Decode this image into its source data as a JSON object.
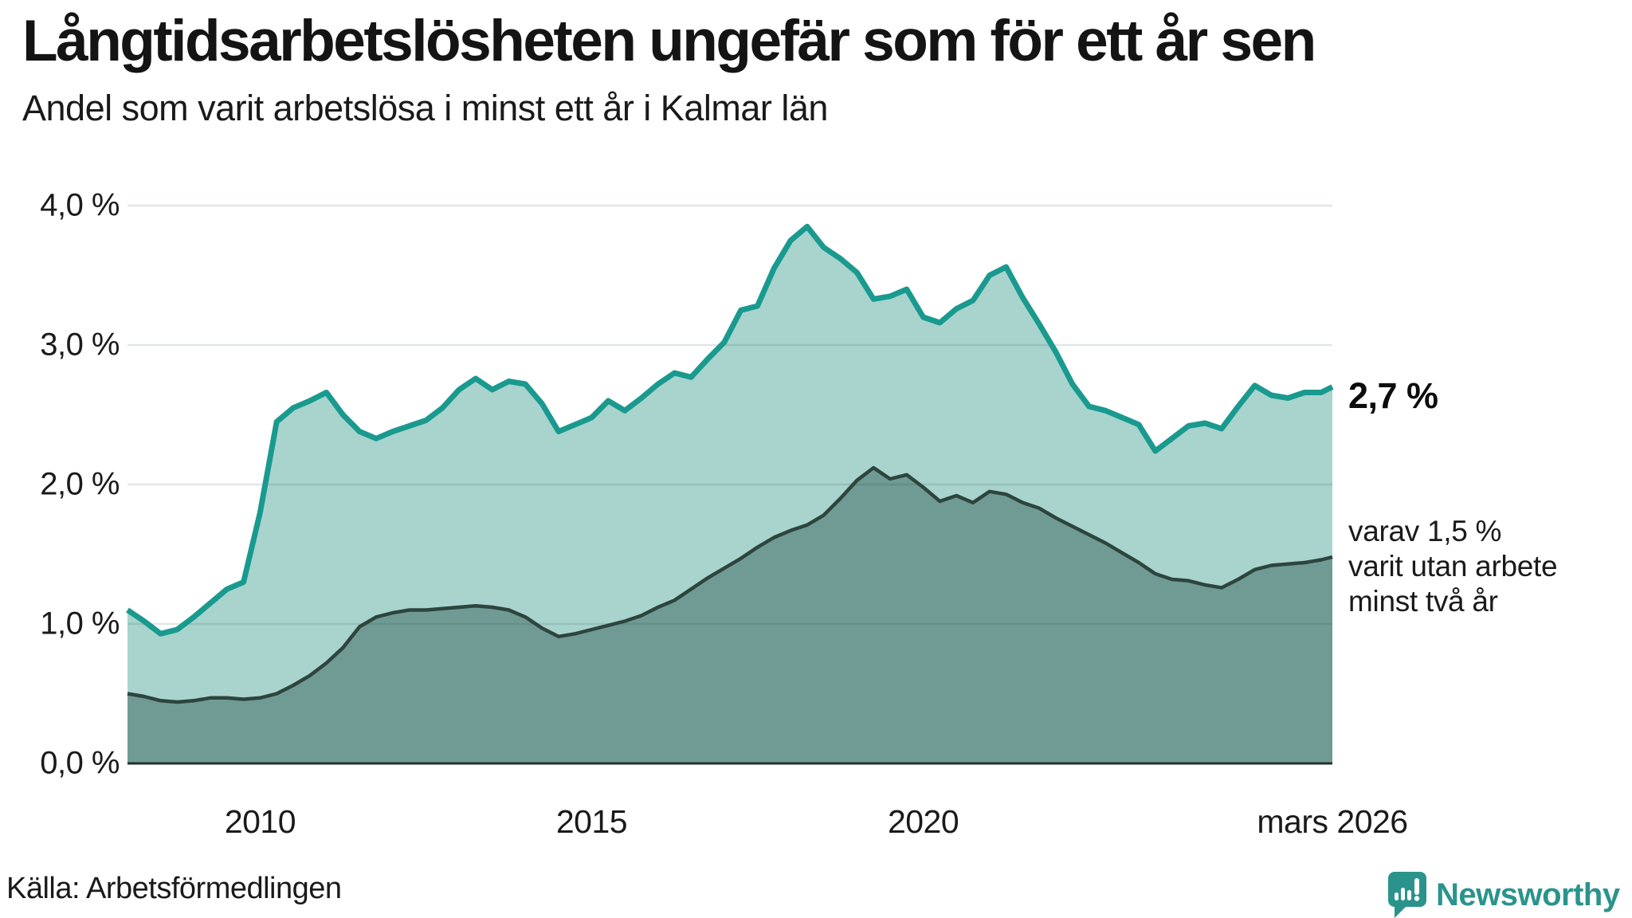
{
  "header": {
    "title": "Långtidsarbetslösheten ungefär som för ett år sen",
    "subtitle": "Andel som varit arbetslösa i minst ett år i Kalmar län"
  },
  "chart_data": {
    "type": "area",
    "title": "Långtidsarbetslösheten ungefär som för ett år sen",
    "subtitle": "Andel som varit arbetslösa i minst ett år i Kalmar län",
    "xlabel": "",
    "ylabel": "",
    "ylim": [
      0,
      4
    ],
    "xlim": [
      2008.0,
      2026.17
    ],
    "grid": true,
    "y_ticks": [
      {
        "label": "4,0 %",
        "value": 4
      },
      {
        "label": "3,0 %",
        "value": 3
      },
      {
        "label": "2,0 %",
        "value": 2
      },
      {
        "label": "1,0 %",
        "value": 1
      },
      {
        "label": "0,0 %",
        "value": 0
      }
    ],
    "x_ticks": [
      {
        "label": "2010",
        "year": 2010
      },
      {
        "label": "2015",
        "year": 2015
      },
      {
        "label": "2020",
        "year": 2020
      },
      {
        "label": "mars 2026",
        "year": 2026.17
      }
    ],
    "x": [
      2008.0,
      2008.25,
      2008.5,
      2008.75,
      2009.0,
      2009.25,
      2009.5,
      2009.75,
      2010.0,
      2010.25,
      2010.5,
      2010.75,
      2011.0,
      2011.25,
      2011.5,
      2011.75,
      2012.0,
      2012.25,
      2012.5,
      2012.75,
      2013.0,
      2013.25,
      2013.5,
      2013.75,
      2014.0,
      2014.25,
      2014.5,
      2014.75,
      2015.0,
      2015.25,
      2015.5,
      2015.75,
      2016.0,
      2016.25,
      2016.5,
      2016.75,
      2017.0,
      2017.25,
      2017.5,
      2017.75,
      2018.0,
      2018.25,
      2018.5,
      2018.75,
      2019.0,
      2019.25,
      2019.5,
      2019.75,
      2020.0,
      2020.25,
      2020.5,
      2020.75,
      2021.0,
      2021.25,
      2021.5,
      2021.75,
      2022.0,
      2022.25,
      2022.5,
      2022.75,
      2023.0,
      2023.25,
      2023.5,
      2023.75,
      2024.0,
      2024.25,
      2024.5,
      2024.75,
      2025.0,
      2025.25,
      2025.5,
      2025.75,
      2026.0,
      2026.17
    ],
    "series": [
      {
        "name": "Arbetslösa minst ett år",
        "end_label": "2,7 %",
        "line_color": "#1a9a8f",
        "fill_color": "#a8d4cd",
        "values": [
          1.1,
          1.02,
          0.93,
          0.96,
          1.05,
          1.15,
          1.25,
          1.3,
          1.8,
          2.45,
          2.55,
          2.6,
          2.66,
          2.5,
          2.38,
          2.33,
          2.38,
          2.42,
          2.46,
          2.55,
          2.68,
          2.76,
          2.68,
          2.74,
          2.72,
          2.58,
          2.38,
          2.43,
          2.48,
          2.6,
          2.53,
          2.62,
          2.72,
          2.8,
          2.77,
          2.9,
          3.02,
          3.25,
          3.28,
          3.55,
          3.75,
          3.85,
          3.7,
          3.62,
          3.52,
          3.33,
          3.35,
          3.4,
          3.2,
          3.16,
          3.26,
          3.32,
          3.5,
          3.56,
          3.34,
          3.15,
          2.95,
          2.72,
          2.56,
          2.53,
          2.48,
          2.43,
          2.24,
          2.33,
          2.42,
          2.44,
          2.4,
          2.56,
          2.71,
          2.64,
          2.62,
          2.66,
          2.66,
          2.7
        ]
      },
      {
        "name": "varav utan arbete minst två år",
        "end_label": "varav 1,5 %",
        "line_color": "#2d453e",
        "fill_color": "#6f9b94",
        "values": [
          0.5,
          0.48,
          0.45,
          0.44,
          0.45,
          0.47,
          0.47,
          0.46,
          0.47,
          0.5,
          0.56,
          0.63,
          0.72,
          0.83,
          0.98,
          1.05,
          1.08,
          1.1,
          1.1,
          1.11,
          1.12,
          1.13,
          1.12,
          1.1,
          1.05,
          0.97,
          0.91,
          0.93,
          0.96,
          0.99,
          1.02,
          1.06,
          1.12,
          1.17,
          1.25,
          1.33,
          1.4,
          1.47,
          1.55,
          1.62,
          1.67,
          1.71,
          1.78,
          1.9,
          2.03,
          2.12,
          2.04,
          2.07,
          1.98,
          1.88,
          1.92,
          1.87,
          1.95,
          1.93,
          1.87,
          1.83,
          1.76,
          1.7,
          1.64,
          1.58,
          1.51,
          1.44,
          1.36,
          1.32,
          1.31,
          1.28,
          1.26,
          1.32,
          1.39,
          1.42,
          1.43,
          1.44,
          1.46,
          1.48
        ]
      }
    ],
    "legend": "none"
  },
  "annotations": {
    "end_value": "2,7 %",
    "note_lines": [
      "varav 1,5 %",
      "varit utan arbete",
      "minst två år"
    ]
  },
  "footer": {
    "source": "Källa: Arbetsförmedlingen",
    "brand": "Newsworthy"
  },
  "colors": {
    "line_total": "#1a9a8f",
    "fill_total": "#a8d4cd",
    "line_two_years": "#2d453e",
    "fill_two_years": "#6f9b94",
    "gridline": "rgba(40,60,70,0.13)",
    "axis_line": "#24302c",
    "brand": "#2a948c",
    "text": "#1a1a1a"
  }
}
